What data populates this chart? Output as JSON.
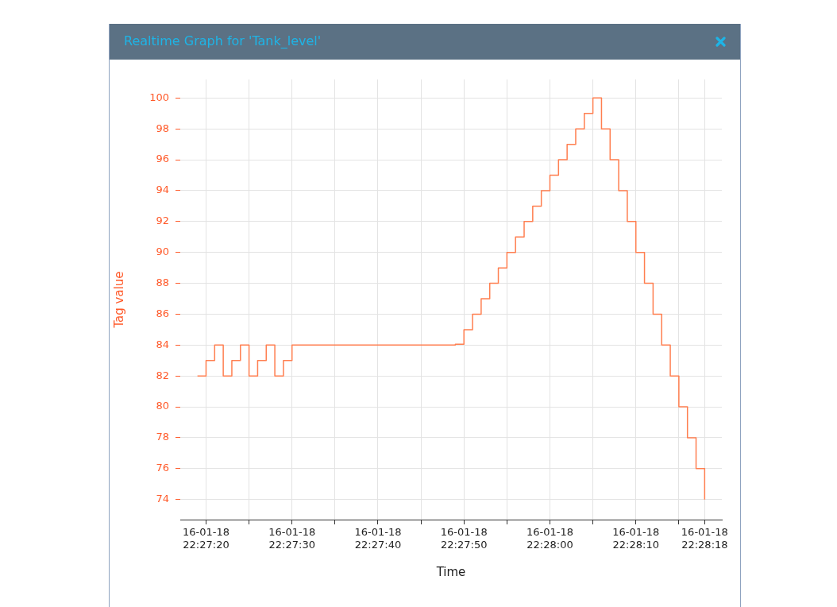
{
  "chart_data": {
    "type": "step",
    "title": "Realtime Graph for 'Tank_level'",
    "xlabel": "Time",
    "ylabel": "Tag value",
    "x": [
      "--01-16T22:27:19",
      "--01-16T22:27:20",
      "--01-16T22:27:21",
      "--01-16T22:27:22",
      "--01-16T22:27:23",
      "--01-16T22:27:24",
      "--01-16T22:27:25",
      "--01-16T22:27:26",
      "--01-16T22:27:27",
      "--01-16T22:27:28",
      "--01-16T22:27:29",
      "--01-16T22:27:30",
      "--01-16T22:27:49",
      "--01-16T22:27:50",
      "--01-16T22:27:51",
      "--01-16T22:27:52",
      "--01-16T22:27:53",
      "--01-16T22:27:54",
      "--01-16T22:27:55",
      "--01-16T22:27:56",
      "--01-16T22:27:57",
      "--01-16T22:27:58",
      "--01-16T22:27:59",
      "--01-16T22:28:00",
      "--01-16T22:28:01",
      "--01-16T22:28:02",
      "--01-16T22:28:03",
      "--01-16T22:28:04",
      "--01-16T22:28:05",
      "--01-16T22:28:06",
      "--01-16T22:28:07",
      "--01-16T22:28:08",
      "--01-16T22:28:09",
      "--01-16T22:28:10",
      "--01-16T22:28:11",
      "--01-16T22:28:12",
      "--01-16T22:28:13",
      "--01-16T22:28:14",
      "--01-16T22:28:15",
      "--01-16T22:28:16",
      "--01-16T22:28:17",
      "--01-16T22:28:18"
    ],
    "series": [
      {
        "color": "#ff7f50",
        "values": [
          82,
          83,
          84,
          82,
          83,
          84,
          82,
          83,
          84,
          82,
          83,
          84,
          84.05,
          85,
          86,
          87,
          88,
          89,
          90,
          91,
          92,
          93,
          94,
          95,
          96,
          97,
          98,
          99,
          100,
          98,
          96,
          94,
          92,
          90,
          88,
          86,
          84,
          82,
          80,
          78,
          76,
          74
        ]
      }
    ],
    "xlim": [
      "--01-16T22:27:17",
      "--01-16T22:28:20"
    ],
    "xticks": [
      {
        "value": "--01-16T22:27:20",
        "label": "16-01-18 22:27:20"
      },
      {
        "value": "--01-16T22:27:25",
        "label": null
      },
      {
        "value": "--01-16T22:27:30",
        "label": "16-01-18 22:27:30"
      },
      {
        "value": "--01-16T22:27:35",
        "label": null
      },
      {
        "value": "--01-16T22:27:40",
        "label": "16-01-18 22:27:40"
      },
      {
        "value": "--01-16T22:27:45",
        "label": null
      },
      {
        "value": "--01-16T22:27:50",
        "label": "16-01-18 22:27:50"
      },
      {
        "value": "--01-16T22:27:55",
        "label": null
      },
      {
        "value": "--01-16T22:28:00",
        "label": "16-01-18 22:28:00"
      },
      {
        "value": "--01-16T22:28:05",
        "label": null
      },
      {
        "value": "--01-16T22:28:10",
        "label": "16-01-18 22:28:10"
      },
      {
        "value": "--01-16T22:28:15",
        "label": null
      },
      {
        "value": "--01-16T22:28:18",
        "label": "16-01-18 22:28:18"
      }
    ],
    "ylim": [
      72.7,
      101.2
    ],
    "yticks": [
      74,
      76,
      78,
      80,
      82,
      84,
      86,
      88,
      90,
      92,
      94,
      96,
      98,
      100
    ],
    "grid": true,
    "marker": "none"
  }
}
